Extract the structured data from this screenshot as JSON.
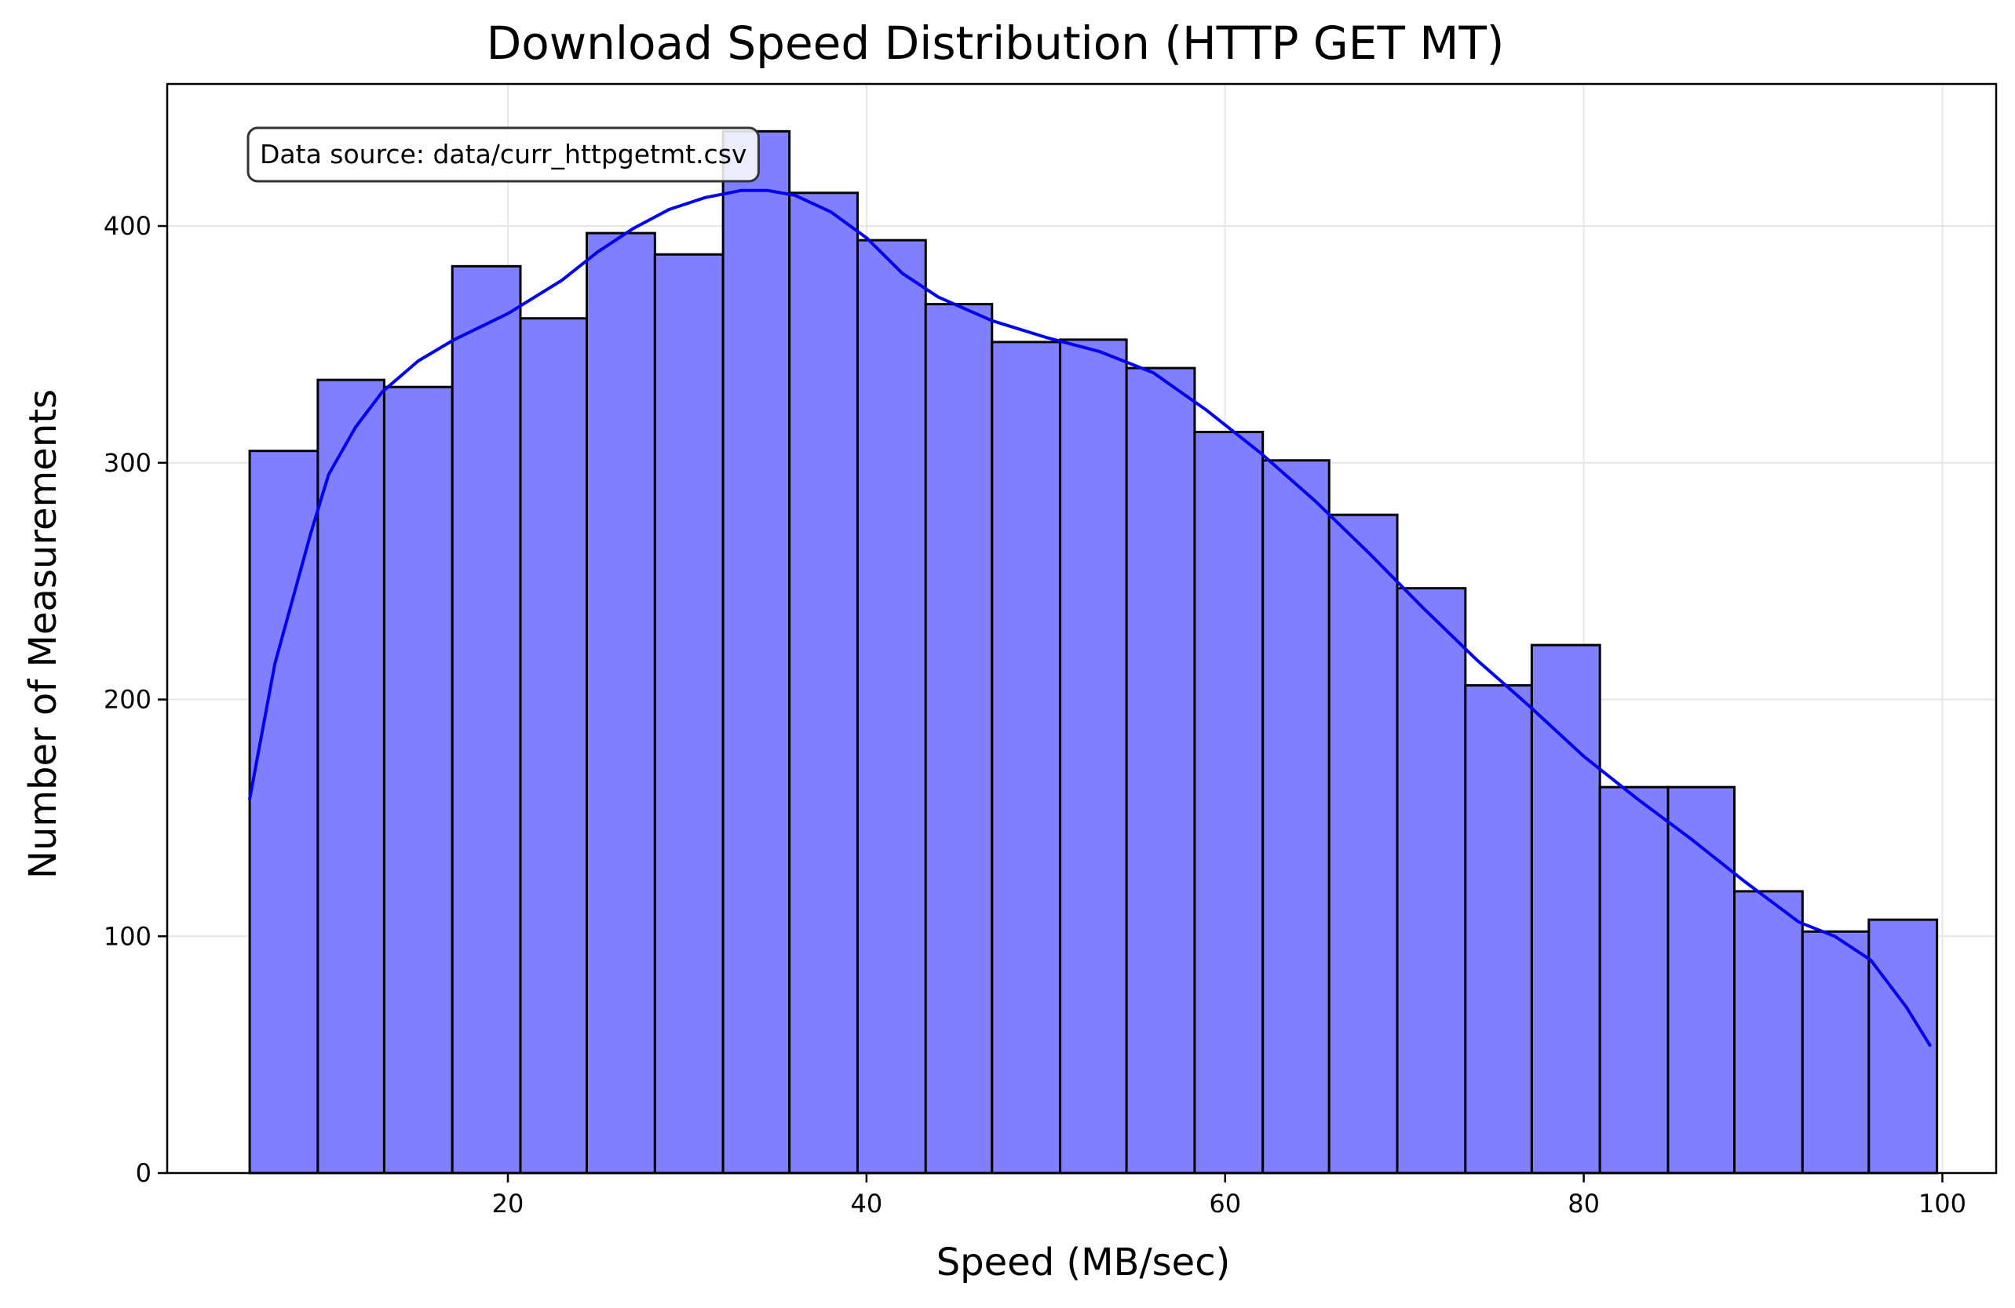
{
  "chart_data": {
    "type": "bar",
    "title": "Download Speed Distribution (HTTP GET MT)",
    "xlabel": "Speed (MB/sec)",
    "ylabel": "Number of Measurements",
    "annotation": "Data source: data/curr_httpgetmt.csv",
    "xlim": [
      1,
      103
    ],
    "ylim": [
      0,
      460
    ],
    "xticks": [
      20,
      40,
      60,
      80,
      100
    ],
    "yticks": [
      0,
      100,
      200,
      300,
      400
    ],
    "grid": true,
    "bins": [
      {
        "x0": 5.6,
        "x1": 9.4,
        "count": 305
      },
      {
        "x0": 9.4,
        "x1": 13.1,
        "count": 335
      },
      {
        "x0": 13.1,
        "x1": 16.9,
        "count": 332
      },
      {
        "x0": 16.9,
        "x1": 20.7,
        "count": 383
      },
      {
        "x0": 20.7,
        "x1": 24.4,
        "count": 361
      },
      {
        "x0": 24.4,
        "x1": 28.2,
        "count": 397
      },
      {
        "x0": 28.2,
        "x1": 32.0,
        "count": 388
      },
      {
        "x0": 32.0,
        "x1": 35.7,
        "count": 440
      },
      {
        "x0": 35.7,
        "x1": 39.5,
        "count": 414
      },
      {
        "x0": 39.5,
        "x1": 43.3,
        "count": 394
      },
      {
        "x0": 43.3,
        "x1": 47.0,
        "count": 367
      },
      {
        "x0": 47.0,
        "x1": 50.8,
        "count": 351
      },
      {
        "x0": 50.8,
        "x1": 54.5,
        "count": 352
      },
      {
        "x0": 54.5,
        "x1": 58.3,
        "count": 340
      },
      {
        "x0": 58.3,
        "x1": 62.1,
        "count": 313
      },
      {
        "x0": 62.1,
        "x1": 65.8,
        "count": 301
      },
      {
        "x0": 65.8,
        "x1": 69.6,
        "count": 278
      },
      {
        "x0": 69.6,
        "x1": 73.4,
        "count": 247
      },
      {
        "x0": 73.4,
        "x1": 77.1,
        "count": 206
      },
      {
        "x0": 77.1,
        "x1": 80.9,
        "count": 223
      },
      {
        "x0": 80.9,
        "x1": 84.7,
        "count": 163
      },
      {
        "x0": 84.7,
        "x1": 88.4,
        "count": 163
      },
      {
        "x0": 88.4,
        "x1": 92.2,
        "count": 119
      },
      {
        "x0": 92.2,
        "x1": 95.9,
        "count": 102
      },
      {
        "x0": 95.9,
        "x1": 99.7,
        "count": 107
      }
    ],
    "kde": {
      "x": [
        5.6,
        7,
        9,
        10,
        11.5,
        13,
        15,
        17,
        20,
        23,
        25,
        27,
        29,
        31,
        33,
        34.5,
        36,
        38,
        40,
        42,
        44,
        47,
        50,
        53,
        56,
        59,
        62,
        65,
        68,
        71,
        74,
        77,
        80,
        83,
        86,
        89,
        92,
        94,
        96,
        98,
        99.3
      ],
      "y": [
        158,
        215,
        270,
        295,
        315,
        330,
        343,
        352,
        363,
        377,
        389,
        399,
        407,
        412,
        415,
        415,
        413,
        406,
        395,
        380,
        370,
        360,
        353,
        347,
        338,
        322,
        304,
        284,
        262,
        239,
        217,
        197,
        176,
        158,
        141,
        123,
        106,
        100,
        90,
        70,
        54
      ]
    },
    "colors": {
      "bar_fill": "#8080ff",
      "bar_edge": "#000000",
      "kde_line": "#0000ee",
      "grid": "#e6e6e6"
    }
  }
}
